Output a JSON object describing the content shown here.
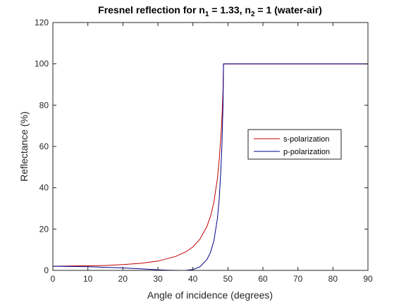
{
  "chart_data": {
    "type": "line",
    "title": {
      "prefix": "Fresnel reflection for n",
      "sub1": "1",
      "mid": " = 1.33, n",
      "sub2": "2",
      "suffix": " = 1 (water-air)"
    },
    "xlabel": "Angle of incidence (degrees)",
    "ylabel": "Reflectance (%)",
    "xlim": [
      0,
      90
    ],
    "ylim": [
      0,
      120
    ],
    "xticks": [
      "0",
      "10",
      "20",
      "30",
      "40",
      "50",
      "60",
      "70",
      "80",
      "90"
    ],
    "yticks": [
      "0",
      "20",
      "40",
      "60",
      "80",
      "100",
      "120"
    ],
    "grid": false,
    "legend_position": "right",
    "series": [
      {
        "name": "s-polarization",
        "color": "#c00000",
        "x": [
          0,
          5,
          10,
          15,
          20,
          25,
          30,
          35,
          38,
          40,
          42,
          44,
          45,
          46,
          47,
          47.5,
          48,
          48.3,
          48.6,
          48.75,
          90
        ],
        "y": [
          2.0,
          2.1,
          2.2,
          2.4,
          2.8,
          3.4,
          4.5,
          6.7,
          9.0,
          11.4,
          15.1,
          21.2,
          26.0,
          33.0,
          44.5,
          53.0,
          65.0,
          74.0,
          87.0,
          100,
          100
        ]
      },
      {
        "name": "p-polarization",
        "color": "#00008b",
        "x": [
          0,
          5,
          10,
          15,
          20,
          25,
          30,
          33,
          35,
          36.9,
          38,
          40,
          42,
          44,
          45,
          46,
          47,
          47.5,
          48,
          48.3,
          48.6,
          48.75,
          90
        ],
        "y": [
          2.0,
          1.9,
          1.8,
          1.5,
          1.2,
          0.8,
          0.3,
          0.1,
          0.02,
          0,
          0.05,
          0.4,
          1.7,
          5.2,
          8.6,
          14.4,
          25.0,
          34.0,
          49.0,
          61.0,
          80.0,
          100,
          100
        ]
      }
    ]
  }
}
